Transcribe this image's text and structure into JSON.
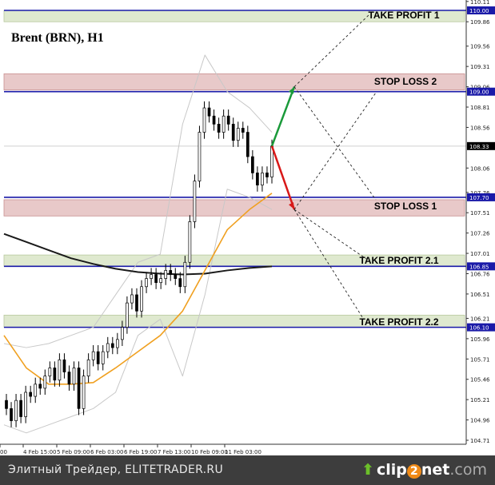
{
  "chart_data": {
    "type": "candlestick",
    "title": "Brent (BRN), H1",
    "ylim": [
      104.66,
      110.13
    ],
    "y_ticks": [
      "110.11",
      "109.86",
      "109.56",
      "109.31",
      "109.06",
      "108.81",
      "108.56",
      "108.06",
      "107.76",
      "107.51",
      "107.26",
      "107.01",
      "106.76",
      "106.51",
      "106.21",
      "105.96",
      "105.71",
      "105.46",
      "105.21",
      "104.96",
      "104.71"
    ],
    "x_ticks": [
      "00",
      "4 Feb 15:00",
      "5 Feb 09:00",
      "6 Feb 03:00",
      "6 Feb 19:00",
      "7 Feb 13:00",
      "10 Feb 09:00",
      "11 Feb 03:00"
    ],
    "closes": [
      105.1,
      104.95,
      105.2,
      105.0,
      105.3,
      105.25,
      105.4,
      105.35,
      105.5,
      105.6,
      105.45,
      105.7,
      105.55,
      105.4,
      105.6,
      105.1,
      105.5,
      105.7,
      105.8,
      105.65,
      105.8,
      105.9,
      105.85,
      105.95,
      106.1,
      106.4,
      106.5,
      106.3,
      106.6,
      106.7,
      106.75,
      106.65,
      106.7,
      106.8,
      106.75,
      106.7,
      106.6,
      106.9,
      107.4,
      107.9,
      108.5,
      108.8,
      108.7,
      108.6,
      108.5,
      108.7,
      108.6,
      108.4,
      108.55,
      108.5,
      108.2,
      108.0,
      107.85,
      108.0,
      107.95,
      108.33
    ],
    "ma_long": [
      107.25,
      107.15,
      107.05,
      106.95,
      106.88,
      106.82,
      106.78,
      106.76,
      106.75,
      106.76,
      106.8,
      106.83,
      106.85
    ],
    "ma_short": [
      106.0,
      105.6,
      105.4,
      105.4,
      105.42,
      105.6,
      105.8,
      106.0,
      106.3,
      106.8,
      107.3,
      107.55,
      107.75
    ],
    "bb_upper": [
      105.9,
      105.85,
      105.9,
      106.0,
      106.1,
      106.5,
      106.9,
      107.0,
      108.6,
      109.45,
      109.0,
      108.8,
      108.5
    ],
    "bb_lower": [
      104.9,
      104.8,
      104.9,
      105.0,
      105.1,
      105.3,
      106.0,
      106.2,
      105.5,
      106.5,
      107.8,
      107.7,
      107.55
    ],
    "current_price": "108.33",
    "levels": [
      {
        "price": 110.0,
        "label": "110.00"
      },
      {
        "price": 109.0,
        "label": "109.00"
      },
      {
        "price": 107.7,
        "label": "107.70"
      },
      {
        "price": 106.85,
        "label": "106.85"
      },
      {
        "price": 106.1,
        "label": "106.10"
      }
    ],
    "zones": [
      {
        "from": 109.86,
        "to": 110.0,
        "color": "#dfe9cf",
        "label": "TAKE PROFIT 1"
      },
      {
        "from": 109.02,
        "to": 109.22,
        "color": "#e8c9c9",
        "label": "STOP LOSS 2"
      },
      {
        "from": 107.47,
        "to": 107.67,
        "color": "#e8c9c9",
        "label": "STOP LOSS 1"
      },
      {
        "from": 106.85,
        "to": 106.99,
        "color": "#dfe9cf",
        "label": "TAKE PROFIT 2.1"
      },
      {
        "from": 106.1,
        "to": 106.25,
        "color": "#dfe9cf",
        "label": "TAKE PROFIT 2.2"
      }
    ],
    "scenario_up": {
      "from": 108.33,
      "to": 109.06,
      "color": "#1a9a3a"
    },
    "scenario_down": {
      "from": 108.33,
      "to": 107.55,
      "color": "#d81818"
    },
    "colors": {
      "level": "#1a1aa8",
      "ma_long": "#1a1a1a",
      "ma_short": "#f0a020",
      "bands": "#c8c8c8"
    }
  },
  "footer": {
    "text": "Элитный Трейдер, ELITETRADER.RU",
    "logo": "clip2net.com"
  }
}
